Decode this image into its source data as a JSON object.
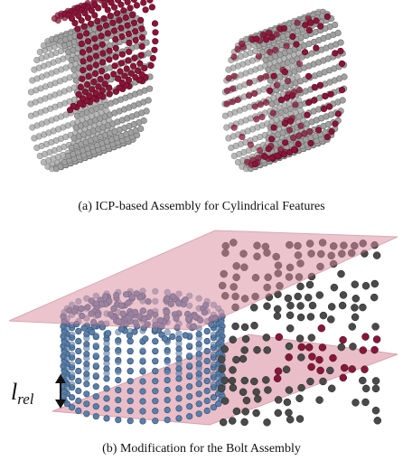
{
  "captions": {
    "a": "(a) ICP-based Assembly for Cylindrical Features",
    "b": "(b) Modification for the Bolt Assembly"
  },
  "label": {
    "base": "l",
    "sub": "rel"
  }
}
